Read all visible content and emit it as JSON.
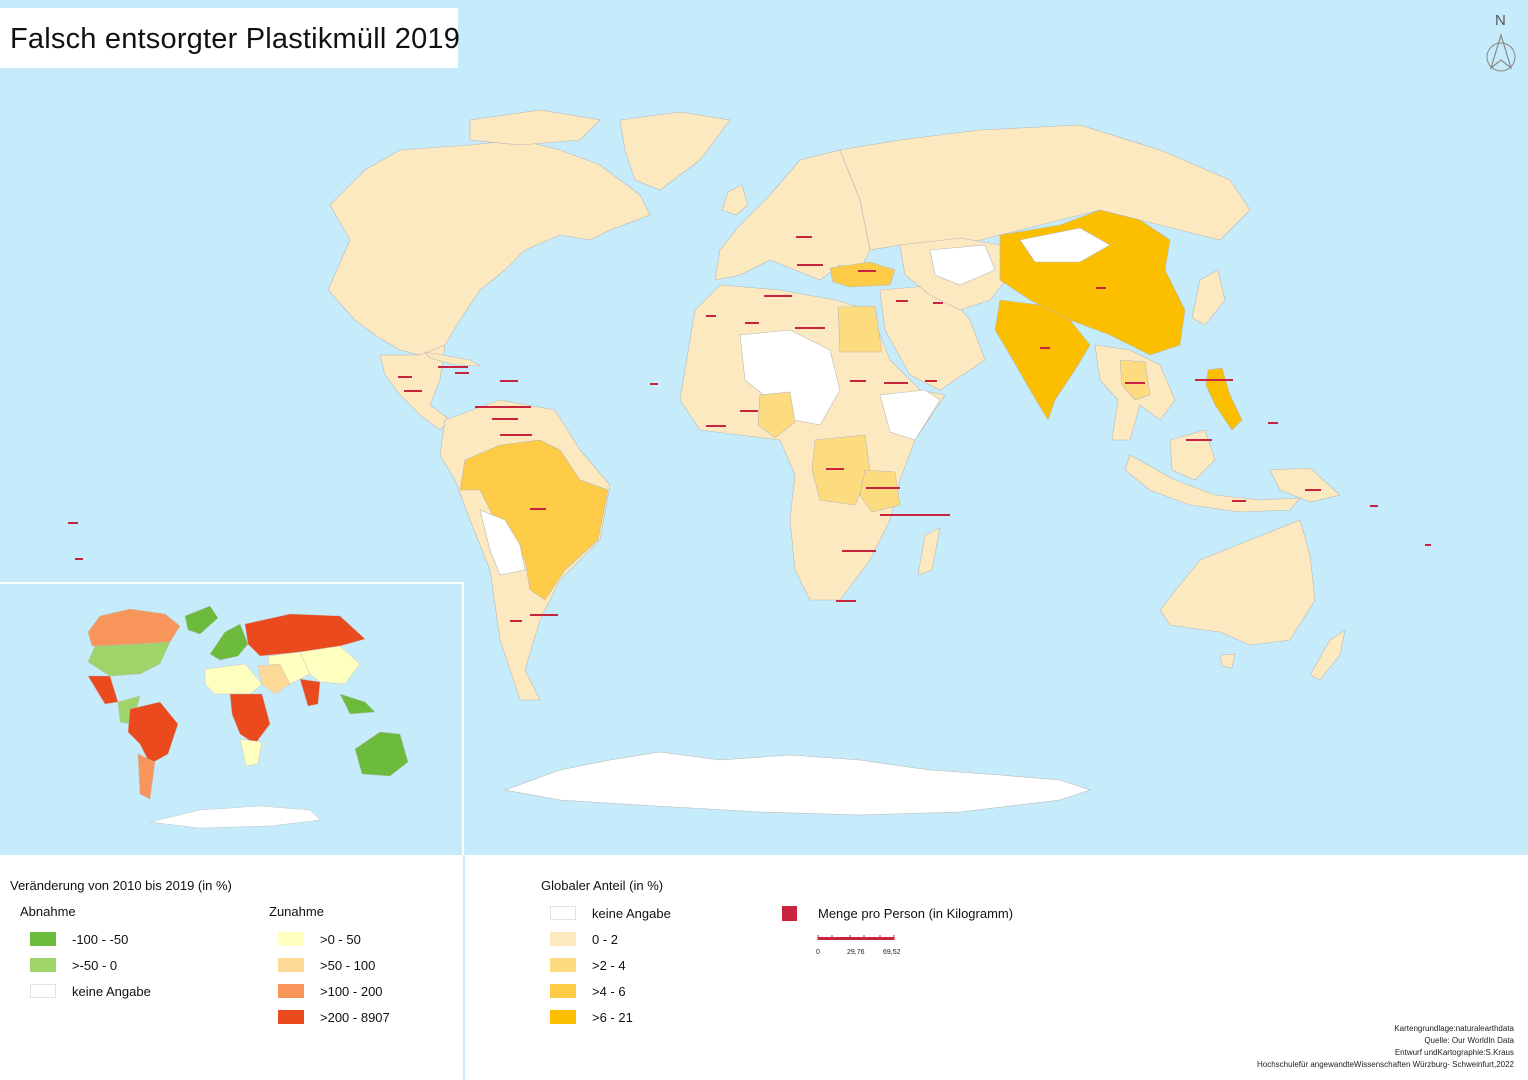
{
  "title": "Falsch entsorgter Plastikmüll 2019",
  "north_label": "N",
  "colors": {
    "ocean": "#c6ebfa",
    "land_default": "#fde9c0",
    "no_data": "#ffffff",
    "share_0_2": "#fde9c0",
    "share_2_4": "#fddc80",
    "share_4_6": "#fdcb45",
    "share_6_21": "#fcbf00",
    "change_m100_m50": "#6cbb3c",
    "change_m50_0": "#9ed46a",
    "change_0_50": "#ffffc0",
    "change_50_100": "#fdd998",
    "change_100_200": "#f7955a",
    "change_200_8907": "#ea4a1e",
    "per_person_bar": "#c8243f"
  },
  "legend_change": {
    "heading": "Veränderung  von 2010 bis 2019 (in  %)",
    "decrease_heading": "Abnahme",
    "increase_heading": "Zunahme",
    "decrease_items": [
      {
        "label": "-100 -  -50",
        "color": "#6cbb3c"
      },
      {
        "label": ">-50  -  0",
        "color": "#9ed46a"
      },
      {
        "label": "keine Angabe",
        "color": "#ffffff"
      }
    ],
    "increase_items": [
      {
        "label": ">0  -  50",
        "color": "#ffffc0"
      },
      {
        "label": ">50  -  100",
        "color": "#fdd998"
      },
      {
        "label": ">100 -  200",
        "color": "#f7955a"
      },
      {
        "label": ">200  -  8907",
        "color": "#ea4a1e"
      }
    ]
  },
  "legend_share": {
    "heading": "Globaler Anteil  (in  %)",
    "items": [
      {
        "label": "keine Angabe",
        "color": "#ffffff"
      },
      {
        "label": "0  -  2",
        "color": "#fde9c0"
      },
      {
        "label": ">2  -  4",
        "color": "#fddc80"
      },
      {
        "label": ">4  -  6",
        "color": "#fdcb45"
      },
      {
        "label": ">6  -  21",
        "color": "#fcbf00"
      }
    ]
  },
  "legend_per_person": {
    "label": "Menge pro Person  (in Kilogramm)",
    "scale_values": [
      "0",
      "29,76",
      "69,52"
    ]
  },
  "credits": [
    "Kartengrundlage:naturalearthdata",
    "Quelle:  Our WorldIn  Data",
    "Entwurf undKartographie:S.Kraus",
    "Hochschulefür  angewandteWissenschaften Würzburg- Schweinfurt,2022"
  ]
}
